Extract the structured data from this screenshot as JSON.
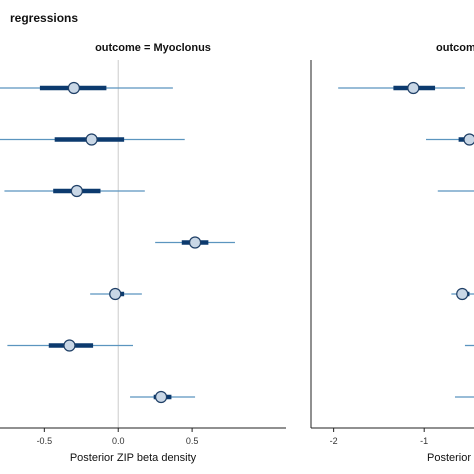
{
  "header": {
    "title": "regressions"
  },
  "colors": {
    "thin": "#5b95bf",
    "thick": "#0c3a6e",
    "point_fill": "#c9d7e6",
    "point_stroke": "#1f3f66",
    "zero_line": "#cccccc"
  },
  "chart_data": [
    {
      "type": "interval",
      "facet_label": "outcome = Myoclonus",
      "xlabel": "Posterior ZIP beta density",
      "xlim": [
        -0.8,
        1.0
      ],
      "xticks": [
        -0.5,
        0.0,
        0.5
      ],
      "xtick_labels": [
        "-0.5",
        "0.0",
        "0.5"
      ],
      "zero_line": 0.0,
      "intervals": [
        {
          "row": 1,
          "point": -0.3,
          "inner": [
            -0.53,
            -0.08
          ],
          "outer": [
            -0.85,
            0.37
          ]
        },
        {
          "row": 2,
          "point": -0.18,
          "inner": [
            -0.43,
            0.04
          ],
          "outer": [
            -0.82,
            0.45
          ]
        },
        {
          "row": 3,
          "point": -0.28,
          "inner": [
            -0.44,
            -0.12
          ],
          "outer": [
            -0.77,
            0.18
          ]
        },
        {
          "row": 4,
          "point": 0.52,
          "inner": [
            0.43,
            0.61
          ],
          "outer": [
            0.25,
            0.79
          ]
        },
        {
          "row": 5,
          "point": -0.02,
          "inner": [
            -0.06,
            0.04
          ],
          "outer": [
            -0.19,
            0.16
          ]
        },
        {
          "row": 6,
          "point": -0.33,
          "inner": [
            -0.47,
            -0.17
          ],
          "outer": [
            -0.75,
            0.1
          ]
        },
        {
          "row": 7,
          "point": 0.29,
          "inner": [
            0.24,
            0.36
          ],
          "outer": [
            0.08,
            0.52
          ]
        }
      ]
    },
    {
      "type": "interval",
      "facet_label": "outcome",
      "xlabel": "Posterior",
      "xlim": [
        -2.25,
        -0.45
      ],
      "xticks": [
        -2,
        -1
      ],
      "xtick_labels": [
        "-2",
        "-1"
      ],
      "intervals": [
        {
          "row": 1,
          "point": -1.12,
          "inner": [
            -1.34,
            -0.88
          ],
          "outer": [
            -1.95,
            -0.55
          ]
        },
        {
          "row": 2,
          "point": -0.5,
          "inner": [
            -0.62,
            -0.45
          ],
          "outer": [
            -0.98,
            -0.45
          ]
        },
        {
          "row": 3,
          "point": null,
          "inner": null,
          "outer": [
            -0.85,
            -0.45
          ]
        },
        {
          "row": 5,
          "point": -0.58,
          "inner": [
            -0.64,
            -0.5
          ],
          "outer": [
            -0.7,
            -0.45
          ]
        },
        {
          "row": 6,
          "point": null,
          "inner": null,
          "outer": [
            -0.55,
            -0.45
          ]
        },
        {
          "row": 7,
          "point": null,
          "inner": null,
          "outer": [
            -0.66,
            -0.45
          ]
        }
      ]
    }
  ]
}
